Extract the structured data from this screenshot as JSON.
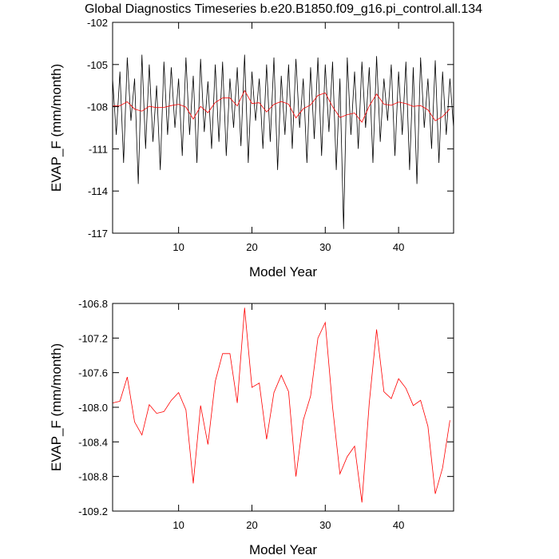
{
  "title": "Global Diagnostics Timeseries b.e20.B1850.f09_g16.pi_control.all.134",
  "chart_data": [
    {
      "type": "line",
      "xlabel": "Model Year",
      "ylabel": "EVAP_F (mm/month)",
      "xlim": [
        1,
        47.5
      ],
      "xticks": [
        10,
        20,
        30,
        40
      ],
      "ylim": [
        -117,
        -102
      ],
      "yticks": [
        -102,
        -105,
        -108,
        -111,
        -114,
        -117
      ],
      "series": [
        {
          "color": "#000000",
          "x": [
            1,
            1.5,
            2,
            2.5,
            3,
            3.5,
            4,
            4.5,
            5,
            5.5,
            6,
            6.5,
            7,
            7.5,
            8,
            8.5,
            9,
            9.5,
            10,
            10.5,
            11,
            11.5,
            12,
            12.5,
            13,
            13.5,
            14,
            14.5,
            15,
            15.5,
            16,
            16.5,
            17,
            17.5,
            18,
            18.5,
            19,
            19.5,
            20,
            20.5,
            21,
            21.5,
            22,
            22.5,
            23,
            23.5,
            24,
            24.5,
            25,
            25.5,
            26,
            26.5,
            27,
            27.5,
            28,
            28.5,
            29,
            29.5,
            30,
            30.5,
            31,
            31.5,
            32,
            32.5,
            33,
            33.5,
            34,
            34.5,
            35,
            35.5,
            36,
            36.5,
            37,
            37.5,
            38,
            38.5,
            39,
            39.5,
            40,
            40.5,
            41,
            41.5,
            42,
            42.5,
            43,
            43.5,
            44,
            44.5,
            45,
            45.5,
            46,
            46.5,
            47,
            47.5
          ],
          "values": [
            -106,
            -110,
            -105.5,
            -112,
            -104.5,
            -109,
            -106,
            -113.5,
            -104.3,
            -111,
            -105,
            -110.5,
            -106.5,
            -112.5,
            -104.8,
            -110,
            -105.2,
            -109.5,
            -106,
            -111.5,
            -104.5,
            -110,
            -105.8,
            -112,
            -104.6,
            -109.8,
            -106.2,
            -111,
            -105,
            -110.5,
            -104.8,
            -111.5,
            -106,
            -109.5,
            -105.2,
            -110.8,
            -104.3,
            -112,
            -105.5,
            -109,
            -106,
            -111,
            -105,
            -110.5,
            -104.5,
            -112.5,
            -105.8,
            -110,
            -105,
            -111,
            -104.6,
            -109.5,
            -106,
            -112,
            -105.2,
            -110.3,
            -104.5,
            -111.5,
            -105,
            -109.8,
            -104.8,
            -112.5,
            -106,
            -116.7,
            -104.5,
            -110,
            -105.5,
            -111,
            -104.8,
            -109.5,
            -105.2,
            -112,
            -104.4,
            -110.5,
            -106,
            -109,
            -105,
            -111.5,
            -105.5,
            -110,
            -104.8,
            -112.5,
            -105.2,
            -113.5,
            -104.5,
            -109.5,
            -106,
            -111,
            -104.7,
            -112,
            -105.5,
            -110,
            -106,
            -109.5
          ]
        },
        {
          "color": "#ff0000",
          "x": [
            1,
            2,
            3,
            4,
            5,
            6,
            7,
            8,
            9,
            10,
            11,
            12,
            13,
            14,
            15,
            16,
            17,
            18,
            19,
            20,
            21,
            22,
            23,
            24,
            25,
            26,
            27,
            28,
            29,
            30,
            31,
            32,
            33,
            34,
            35,
            36,
            37,
            38,
            39,
            40,
            41,
            42,
            43,
            44,
            45,
            46,
            47
          ],
          "values": [
            -107.95,
            -107.93,
            -107.65,
            -108.17,
            -108.32,
            -107.97,
            -108.07,
            -108.05,
            -107.92,
            -107.83,
            -108.03,
            -108.88,
            -107.98,
            -108.43,
            -107.7,
            -107.38,
            -107.38,
            -107.95,
            -106.85,
            -107.77,
            -107.72,
            -108.37,
            -107.83,
            -107.63,
            -107.82,
            -108.8,
            -108.15,
            -107.87,
            -107.2,
            -107.02,
            -108.0,
            -108.77,
            -108.57,
            -108.45,
            -109.1,
            -107.95,
            -107.1,
            -107.82,
            -107.9,
            -107.67,
            -107.78,
            -107.98,
            -107.92,
            -108.22,
            -109.0,
            -108.7,
            -108.15
          ]
        }
      ]
    },
    {
      "type": "line",
      "xlabel": "Model Year",
      "ylabel": "EVAP_F (mm/month)",
      "xlim": [
        1,
        47.5
      ],
      "xticks": [
        10,
        20,
        30,
        40
      ],
      "ylim": [
        -109.2,
        -106.8
      ],
      "yticks": [
        -106.8,
        -107.2,
        -107.6,
        {
          "value": -108,
          "label": "-108.0"
        },
        -108.4,
        -108.8,
        -109.2
      ],
      "series": [
        {
          "color": "#ff0000",
          "x": [
            1,
            2,
            3,
            4,
            5,
            6,
            7,
            8,
            9,
            10,
            11,
            12,
            13,
            14,
            15,
            16,
            17,
            18,
            19,
            20,
            21,
            22,
            23,
            24,
            25,
            26,
            27,
            28,
            29,
            30,
            31,
            32,
            33,
            34,
            35,
            36,
            37,
            38,
            39,
            40,
            41,
            42,
            43,
            44,
            45,
            46,
            47
          ],
          "values": [
            -107.95,
            -107.93,
            -107.65,
            -108.17,
            -108.32,
            -107.97,
            -108.07,
            -108.05,
            -107.92,
            -107.83,
            -108.03,
            -108.88,
            -107.98,
            -108.43,
            -107.7,
            -107.38,
            -107.38,
            -107.95,
            -106.85,
            -107.77,
            -107.72,
            -108.37,
            -107.83,
            -107.63,
            -107.82,
            -108.8,
            -108.15,
            -107.87,
            -107.2,
            -107.02,
            -108.0,
            -108.77,
            -108.57,
            -108.45,
            -109.1,
            -107.95,
            -107.1,
            -107.82,
            -107.9,
            -107.67,
            -107.78,
            -107.98,
            -107.92,
            -108.22,
            -109.0,
            -108.7,
            -108.15
          ]
        }
      ]
    }
  ]
}
